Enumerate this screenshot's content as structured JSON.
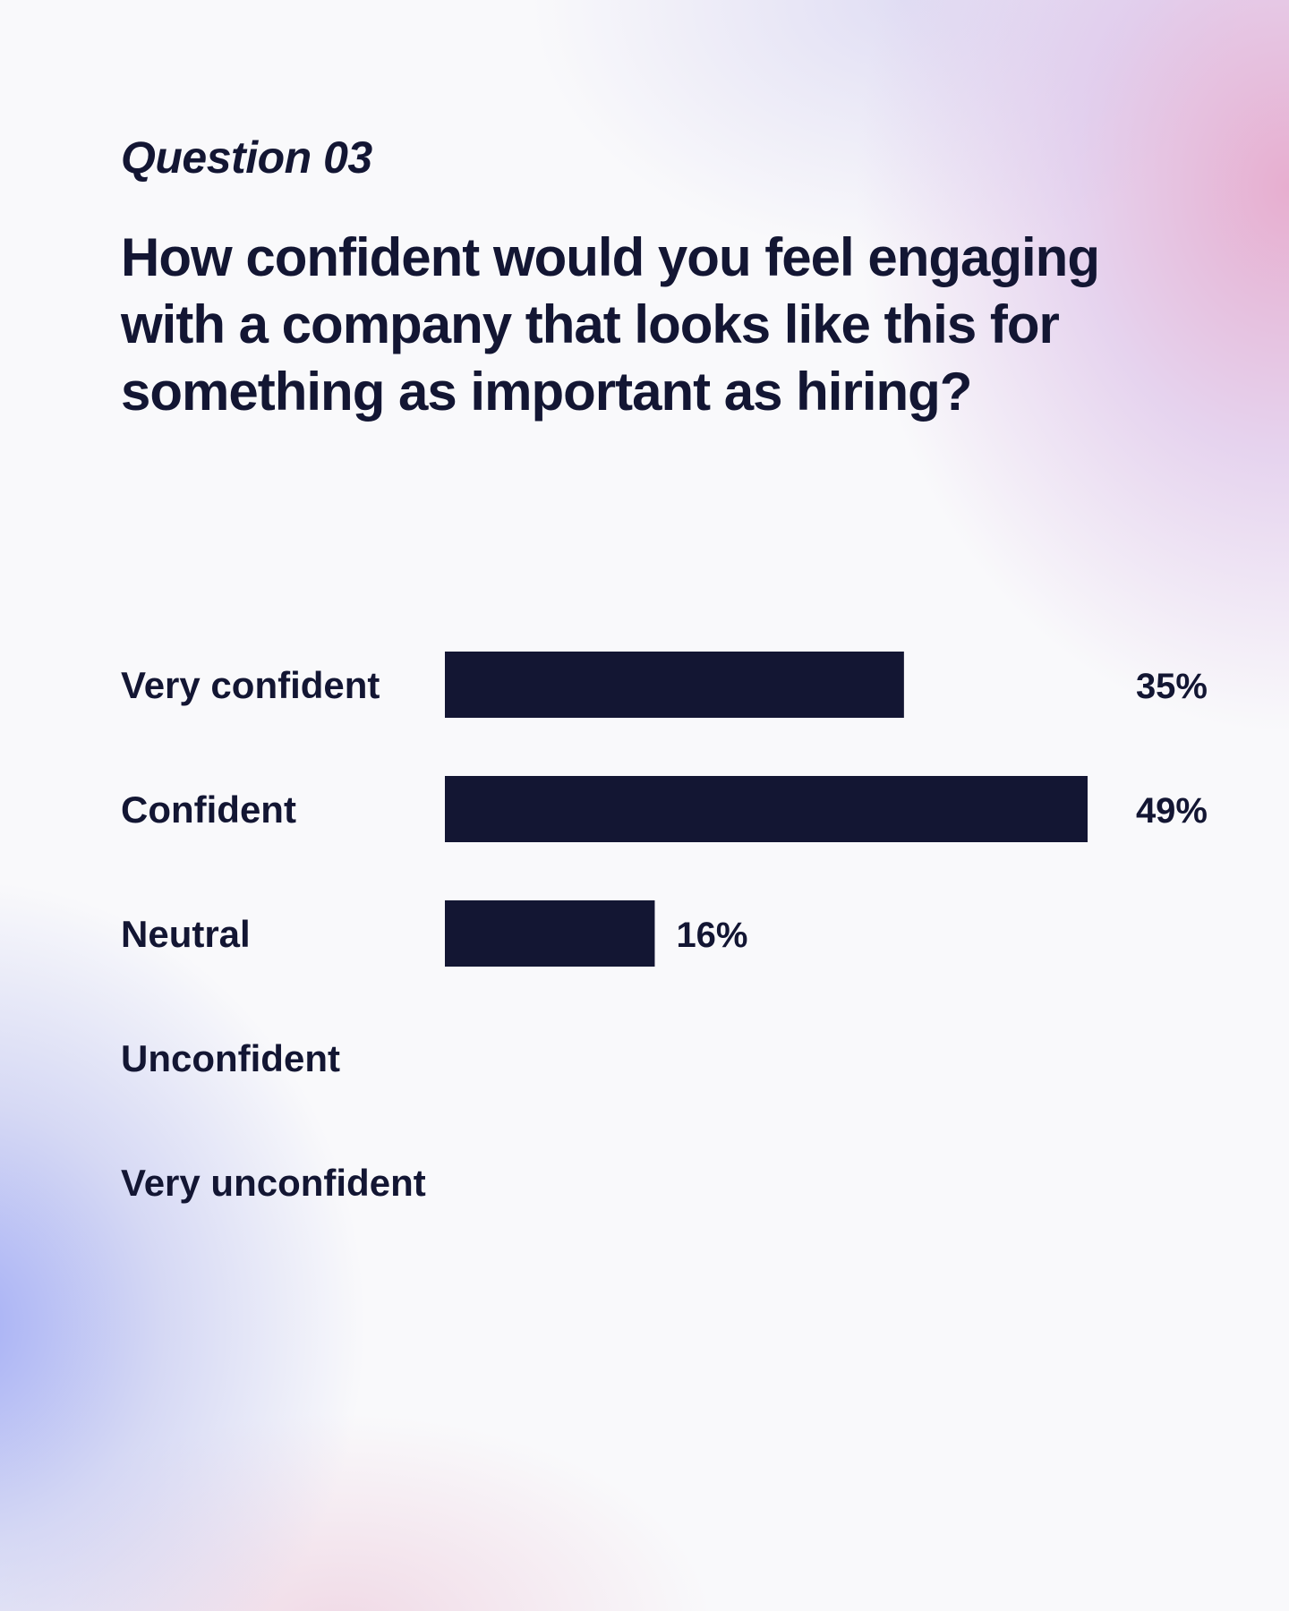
{
  "header": {
    "eyebrow": "Question 03",
    "question": "How confident would you feel engaging with a company that looks like this for something as important as hiring?"
  },
  "colors": {
    "bar": "#131633",
    "text": "#131633"
  },
  "chart_data": {
    "type": "bar",
    "orientation": "horizontal",
    "categories": [
      "Very confident",
      "Confident",
      "Neutral",
      "Unconfident",
      "Very unconfident"
    ],
    "values": [
      35,
      49,
      16,
      null,
      null
    ],
    "value_labels": [
      "35%",
      "49%",
      "16%",
      "",
      ""
    ],
    "unit": "%",
    "title": "",
    "xlabel": "",
    "ylabel": "",
    "xlim": [
      0,
      49
    ],
    "grid": false,
    "legend": "none"
  }
}
